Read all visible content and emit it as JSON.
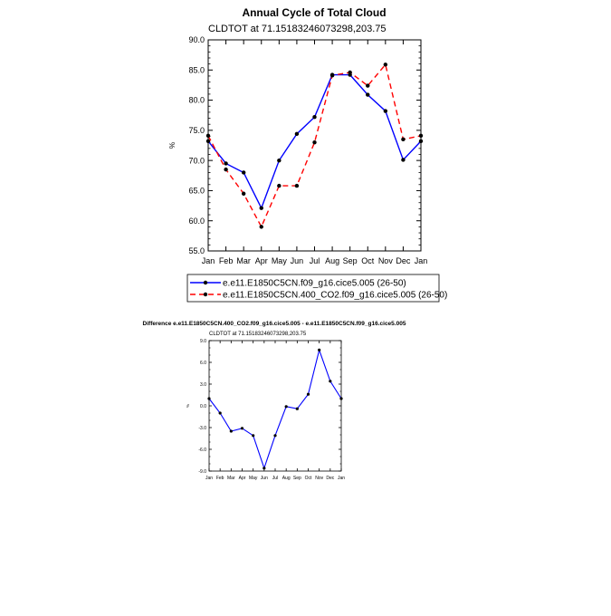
{
  "chart_data": [
    {
      "type": "line",
      "title": "Annual Cycle of Total Cloud",
      "subtitle": "CLDTOT at 71.15183246073298,203.75",
      "xlabel": "",
      "ylabel": "%",
      "categories": [
        "Jan",
        "Feb",
        "Mar",
        "Apr",
        "May",
        "Jun",
        "Jul",
        "Aug",
        "Sep",
        "Oct",
        "Nov",
        "Dec",
        "Jan"
      ],
      "ylim": [
        55.0,
        90.0
      ],
      "yticks": [
        "55.0",
        "60.0",
        "65.0",
        "70.0",
        "75.0",
        "80.0",
        "85.0",
        "90.0"
      ],
      "grid": false,
      "legend_position": "bottom-center",
      "series": [
        {
          "name": "e.e11.E1850C5CN.f09_g16.cice5.005 (26-50)",
          "color": "#0000ff",
          "style": "solid",
          "values": [
            73.2,
            69.5,
            68.0,
            62.1,
            70.0,
            74.4,
            77.2,
            84.2,
            84.2,
            80.9,
            78.2,
            70.1,
            73.2
          ]
        },
        {
          "name": "e.e11.E1850C5CN.400_CO2.f09_g16.cice5.005 (26-50)",
          "color": "#ff0000",
          "style": "dashed",
          "values": [
            74.1,
            68.5,
            64.5,
            59.0,
            65.8,
            65.8,
            73.0,
            84.1,
            84.6,
            82.4,
            85.9,
            73.5,
            74.1
          ]
        }
      ]
    },
    {
      "type": "line",
      "title": "Difference e.e11.E1850C5CN.400_CO2.f09_g16.cice5.005 - e.e11.E1850C5CN.f09_g16.cice5.005",
      "subtitle": "CLDTOT at 71.15183246073298,203.75",
      "xlabel": "",
      "ylabel": "%",
      "categories": [
        "Jan",
        "Feb",
        "Mar",
        "Apr",
        "May",
        "Jun",
        "Jul",
        "Aug",
        "Sep",
        "Oct",
        "Nov",
        "Dec",
        "Jan"
      ],
      "ylim": [
        -9.0,
        9.0
      ],
      "yticks": [
        "-9.0",
        "-6.0",
        "-3.0",
        "0.0",
        "3.0",
        "6.0",
        "9.0"
      ],
      "grid": false,
      "series": [
        {
          "name": "difference",
          "color": "#0000ff",
          "style": "solid",
          "values": [
            1.0,
            -1.0,
            -3.5,
            -3.1,
            -4.1,
            -8.6,
            -4.1,
            -0.1,
            -0.4,
            1.6,
            7.7,
            3.4,
            1.0
          ]
        }
      ]
    }
  ]
}
